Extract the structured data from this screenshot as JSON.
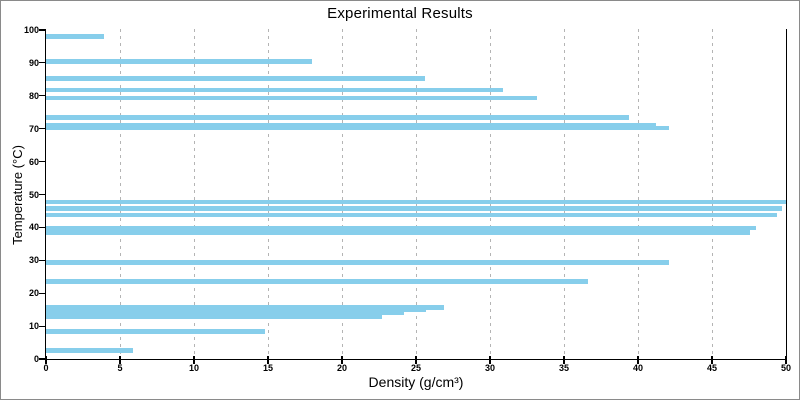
{
  "chart_data": {
    "type": "bar",
    "orientation": "horizontal",
    "title": "Experimental Results",
    "xlabel": "Density (g/cm³)",
    "ylabel": "Temperature (°C)",
    "xlim": [
      0,
      50
    ],
    "ylim": [
      0,
      100
    ],
    "x_ticks": [
      0,
      5,
      10,
      15,
      20,
      25,
      30,
      35,
      40,
      45,
      50
    ],
    "y_ticks": [
      0,
      10,
      20,
      30,
      40,
      50,
      60,
      70,
      80,
      90,
      100
    ],
    "grid": "vertical-dashed-gray",
    "legend": "none",
    "bar_color": "#87CEEB",
    "bars": [
      {
        "temperature": 98.0,
        "density": 3.9
      },
      {
        "temperature": 90.4,
        "density": 18.0
      },
      {
        "temperature": 85.2,
        "density": 25.6
      },
      {
        "temperature": 81.8,
        "density": 30.9
      },
      {
        "temperature": 79.3,
        "density": 33.2
      },
      {
        "temperature": 73.4,
        "density": 39.4
      },
      {
        "temperature": 71.0,
        "density": 41.2
      },
      {
        "temperature": 70.2,
        "density": 42.1
      },
      {
        "temperature": 47.7,
        "density": 50.0
      },
      {
        "temperature": 45.7,
        "density": 49.7
      },
      {
        "temperature": 43.8,
        "density": 49.4
      },
      {
        "temperature": 39.8,
        "density": 48.0
      },
      {
        "temperature": 38.4,
        "density": 47.6
      },
      {
        "temperature": 29.3,
        "density": 42.1
      },
      {
        "temperature": 23.5,
        "density": 36.6
      },
      {
        "temperature": 15.7,
        "density": 26.9
      },
      {
        "temperature": 15.0,
        "density": 25.7
      },
      {
        "temperature": 14.1,
        "density": 24.2
      },
      {
        "temperature": 12.8,
        "density": 22.7
      },
      {
        "temperature": 8.3,
        "density": 14.8
      },
      {
        "temperature": 2.5,
        "density": 5.9
      }
    ]
  }
}
